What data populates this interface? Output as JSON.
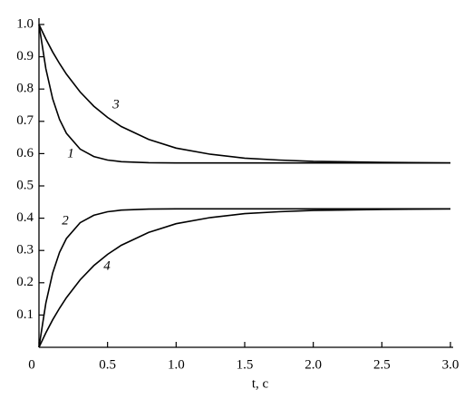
{
  "chart_data": {
    "type": "line",
    "xlabel": "t, c",
    "x": [
      0,
      0.05,
      0.1,
      0.15,
      0.2,
      0.3,
      0.4,
      0.5,
      0.6,
      0.8,
      1.0,
      1.25,
      1.5,
      1.75,
      2.0,
      2.5,
      3.0
    ],
    "series": [
      {
        "name": "1",
        "color": "#000000",
        "values": [
          1.0,
          0.863,
          0.77,
          0.706,
          0.663,
          0.614,
          0.591,
          0.58,
          0.575,
          0.572,
          0.571,
          0.571,
          0.571,
          0.571,
          0.571,
          0.571,
          0.571
        ]
      },
      {
        "name": "2",
        "color": "#000000",
        "values": [
          0,
          0.137,
          0.23,
          0.294,
          0.337,
          0.386,
          0.409,
          0.42,
          0.425,
          0.428,
          0.429,
          0.429,
          0.429,
          0.429,
          0.429,
          0.429,
          0.429
        ]
      },
      {
        "name": "3",
        "color": "#000000",
        "values": [
          1.0,
          0.955,
          0.915,
          0.879,
          0.846,
          0.791,
          0.747,
          0.712,
          0.684,
          0.644,
          0.617,
          0.598,
          0.586,
          0.58,
          0.576,
          0.573,
          0.571
        ]
      },
      {
        "name": "4",
        "color": "#000000",
        "values": [
          0,
          0.045,
          0.085,
          0.121,
          0.154,
          0.209,
          0.253,
          0.288,
          0.316,
          0.356,
          0.383,
          0.402,
          0.414,
          0.42,
          0.424,
          0.427,
          0.429
        ]
      }
    ],
    "xlim": [
      0,
      3.0
    ],
    "xticks": [
      0,
      0.5,
      {
        "value": 1,
        "label": "1.0"
      },
      1.5,
      {
        "value": 2,
        "label": "2.0"
      },
      2.5,
      {
        "value": 3,
        "label": "3.0"
      }
    ],
    "ylim": [
      0,
      1.0
    ],
    "yticks": [
      0.1,
      0.2,
      0.3,
      0.4,
      0.5,
      0.6,
      0.7,
      0.8,
      0.9,
      {
        "value": 1,
        "label": "1.0"
      }
    ],
    "grid": false
  }
}
